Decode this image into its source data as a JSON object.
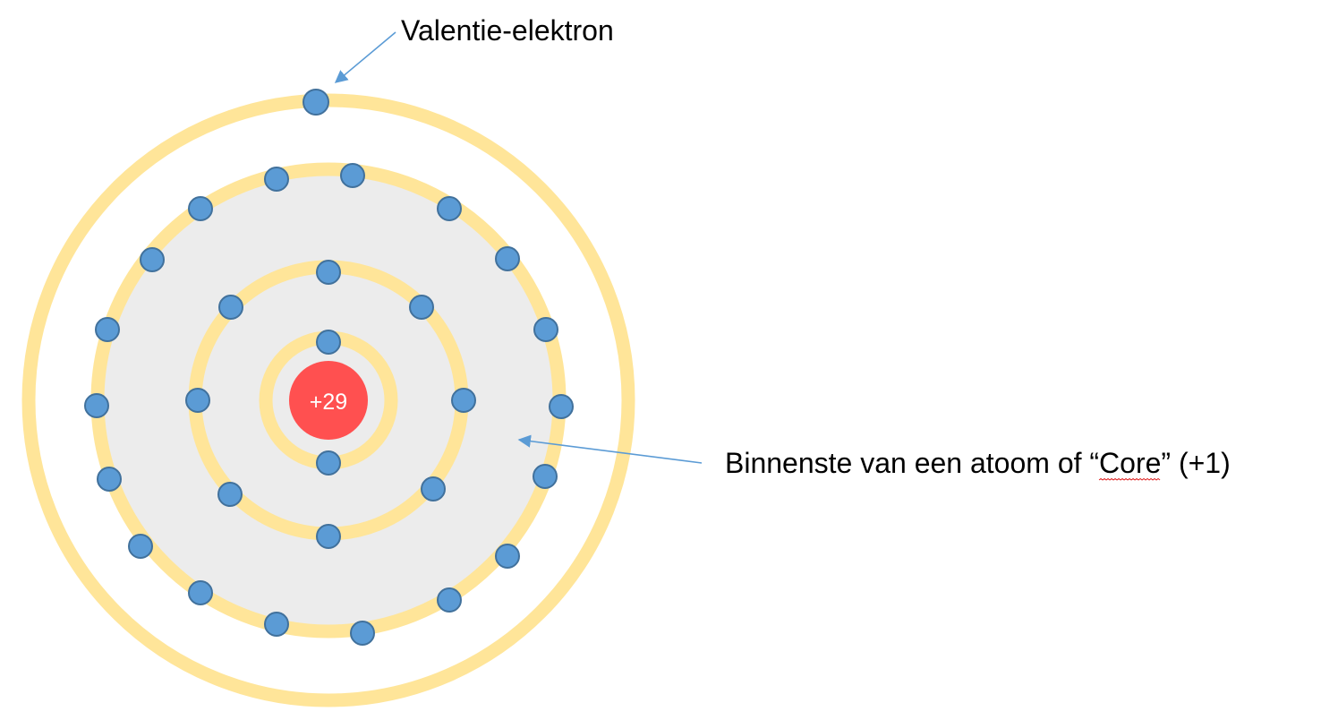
{
  "labels": {
    "valence": "Valentie-elektron",
    "core": "Binnenste van een atoom of “Core” (+1)",
    "core_underlined_word": "Core"
  },
  "nucleus": {
    "charge": "+29"
  },
  "shells": [
    {
      "name": "shell-1",
      "electron_count": 2
    },
    {
      "name": "shell-2",
      "electron_count": 8
    },
    {
      "name": "shell-3",
      "electron_count": 18
    },
    {
      "name": "shell-4",
      "electron_count": 1
    }
  ],
  "colors": {
    "shell_ring": "#ffe599",
    "core_fill": "#ececec",
    "electron_fill": "#5b9bd5",
    "electron_stroke": "#41719c",
    "nucleus_fill": "#ff5050",
    "nucleus_text": "#ffffff",
    "arrow": "#5b9bd5",
    "spellcheck_underline": "#e02020"
  }
}
